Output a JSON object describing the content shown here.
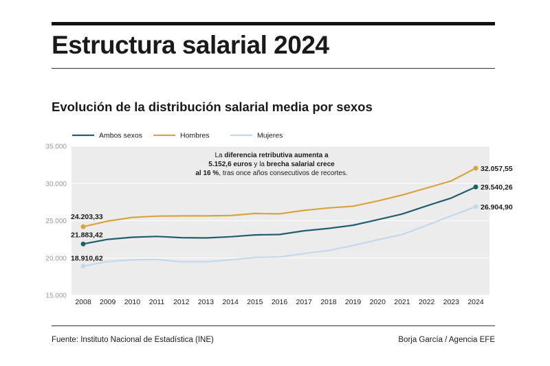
{
  "header": {
    "title": "Estructura salarial 2024"
  },
  "chart_data": {
    "type": "line",
    "title": "Evolución de la distribución salarial media por sexos",
    "xlabel": "",
    "ylabel": "",
    "x": [
      "2008",
      "2009",
      "2010",
      "2011",
      "2012",
      "2013",
      "2014",
      "2015",
      "2016",
      "2017",
      "2018",
      "2019",
      "2020",
      "2021",
      "2022",
      "2023",
      "2024"
    ],
    "ylim": [
      15000,
      35000
    ],
    "yticks": [
      15000,
      20000,
      25000,
      30000,
      35000
    ],
    "ytick_labels": [
      "15.000",
      "20.000",
      "25.000",
      "30.000",
      "35.000"
    ],
    "grid": true,
    "legend_placement": "top-left",
    "series": [
      {
        "name": "Ambos sexos",
        "color": "#1e5f6b",
        "values": [
          21883.42,
          22500,
          22790,
          22900,
          22730,
          22700,
          22850,
          23100,
          23160,
          23650,
          23980,
          24400,
          25150,
          25900,
          27000,
          28050,
          29540.26
        ],
        "start_label": "21.883,42",
        "end_label": "29.540,26"
      },
      {
        "name": "Hombres",
        "color": "#d9a43c",
        "values": [
          24203.33,
          24950,
          25450,
          25630,
          25650,
          25650,
          25700,
          25980,
          25930,
          26390,
          26720,
          26950,
          27650,
          28450,
          29400,
          30350,
          32057.55
        ],
        "start_label": "24.203,33",
        "end_label": "32.057,55"
      },
      {
        "name": "Mujeres",
        "color": "#c3d8ea",
        "values": [
          18910.62,
          19530,
          19760,
          19800,
          19500,
          19510,
          19750,
          20080,
          20140,
          20600,
          21010,
          21680,
          22450,
          23150,
          24380,
          25660,
          26904.9
        ],
        "start_label": "18.910,62",
        "end_label": "26.904,90"
      }
    ],
    "annotation": {
      "lines": [
        [
          {
            "t": "La ",
            "b": false
          },
          {
            "t": "diferencia retributiva aumenta a",
            "b": true
          }
        ],
        [
          {
            "t": "5.152,6 euros",
            "b": true
          },
          {
            "t": " y la ",
            "b": false
          },
          {
            "t": "brecha salarial crece",
            "b": true
          }
        ],
        [
          {
            "t": "al 16 %",
            "b": true
          },
          {
            "t": ", tras once años consecutivos de recortes.",
            "b": false
          }
        ]
      ]
    }
  },
  "footer": {
    "source": "Fuente: Instituto Nacional de Estadística (INE)",
    "credit": "Borja García / Agencia EFE"
  }
}
